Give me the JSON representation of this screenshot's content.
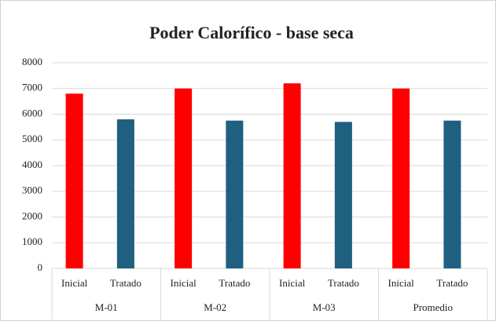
{
  "chart_data": {
    "type": "bar",
    "title": "Poder Calorífico - base seca",
    "categories": [
      "M-01",
      "M-02",
      "M-03",
      "Promedio"
    ],
    "series": [
      {
        "name": "Inicial",
        "color": "#ff0000",
        "values": [
          6800,
          7000,
          7200,
          7000
        ]
      },
      {
        "name": "Tratado",
        "color": "#1f5f80",
        "values": [
          5800,
          5750,
          5700,
          5750
        ]
      }
    ],
    "ylim": [
      0,
      8000
    ],
    "yticks": [
      0,
      1000,
      2000,
      3000,
      4000,
      5000,
      6000,
      7000,
      8000
    ],
    "grid": true
  }
}
